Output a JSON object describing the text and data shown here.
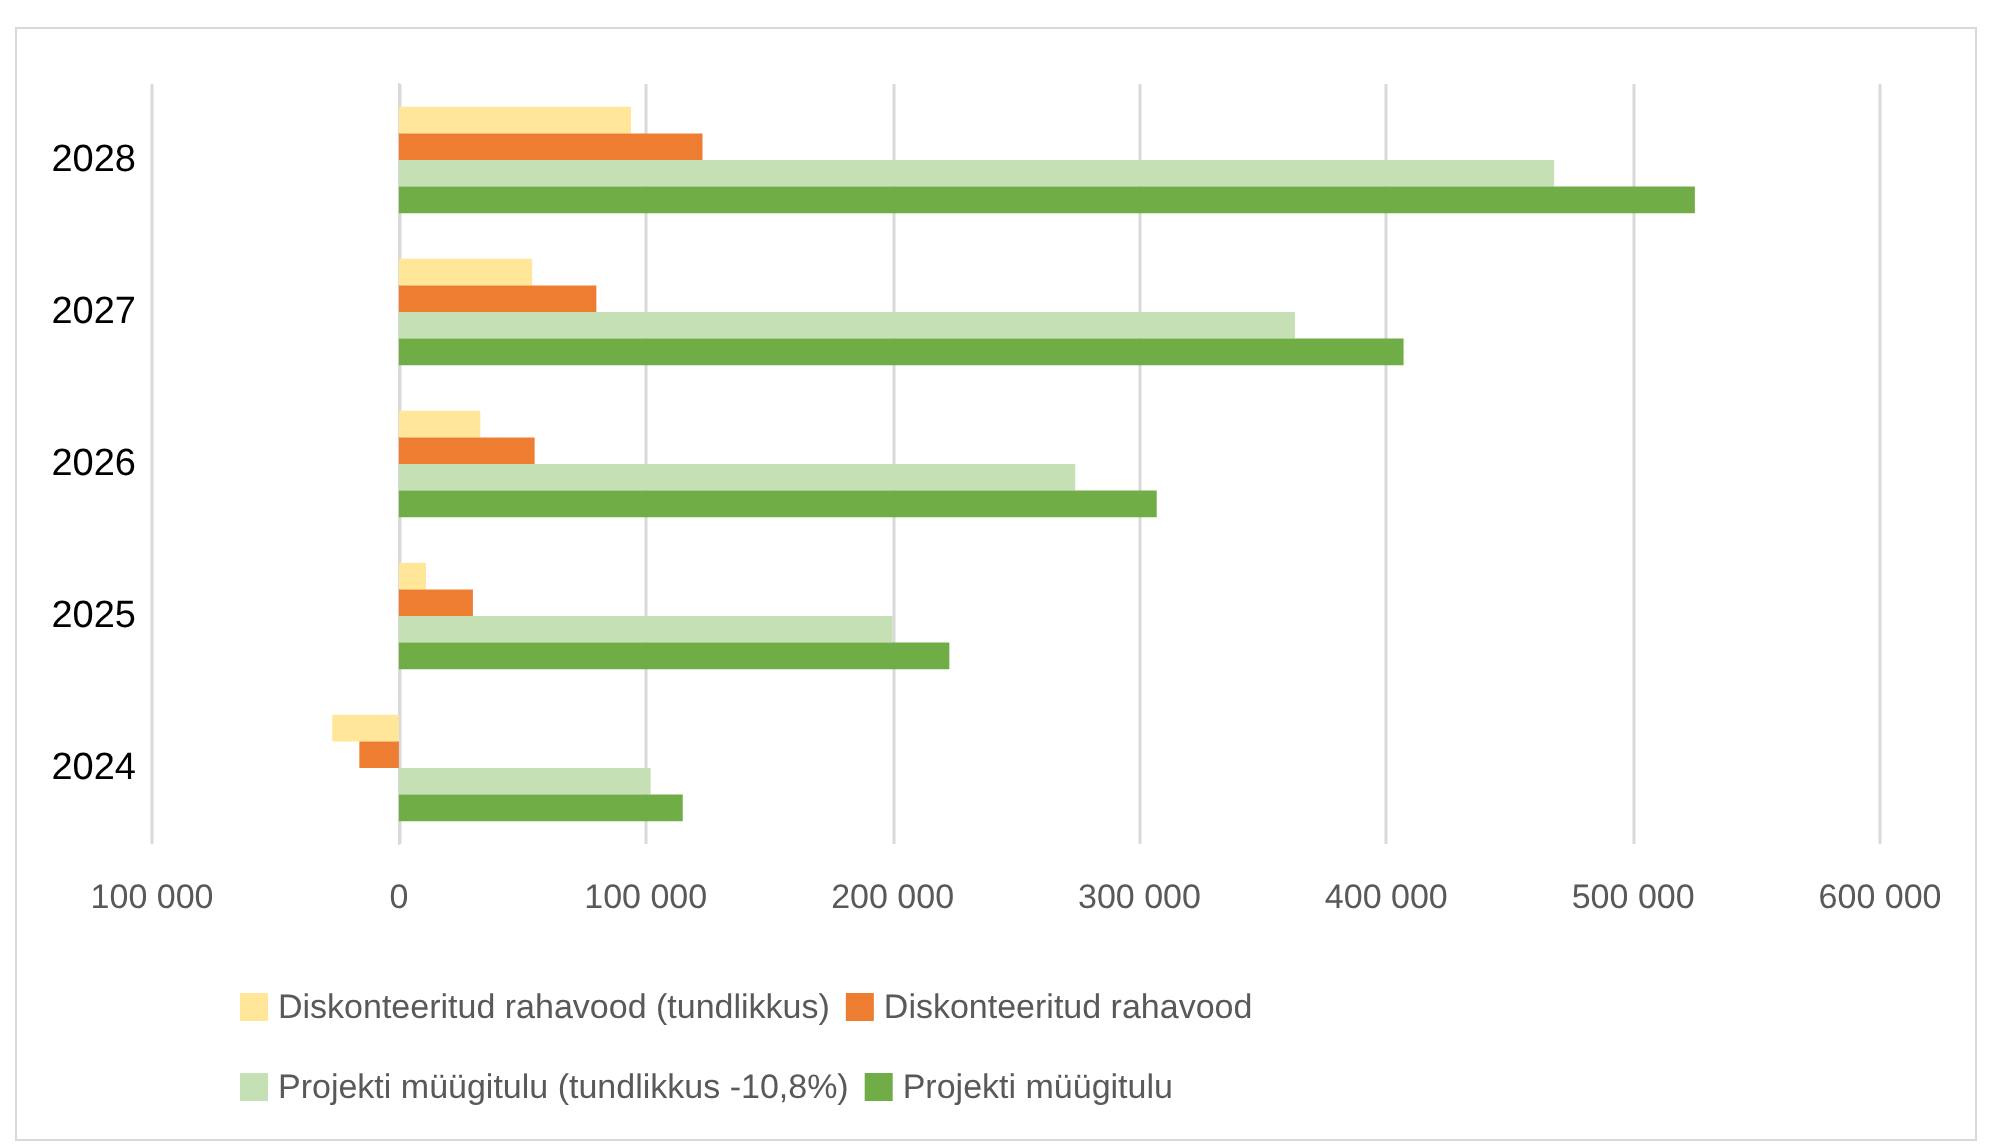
{
  "chart_data": {
    "type": "bar",
    "orientation": "horizontal",
    "categories": [
      "2028",
      "2027",
      "2026",
      "2025",
      "2024"
    ],
    "series": [
      {
        "name": "Diskonteeritud rahavood (tundlikkus)",
        "color": "#ffe699",
        "values": [
          94000,
          54000,
          33000,
          11000,
          -27000
        ]
      },
      {
        "name": "Diskonteeritud rahavood",
        "color": "#ed7d31",
        "values": [
          123000,
          80000,
          55000,
          30000,
          -16000
        ]
      },
      {
        "name": "Projekti müügitulu (tundlikkus -10,8%)",
        "color": "#c5e0b4",
        "values": [
          468000,
          363000,
          274000,
          200000,
          102000
        ]
      },
      {
        "name": "Projekti müügitulu",
        "color": "#70ad47",
        "values": [
          525000,
          407000,
          307000,
          223000,
          115000
        ]
      }
    ],
    "xlim": [
      -100000,
      600000
    ],
    "xticks": [
      {
        "value": -100000,
        "label": "100 000"
      },
      {
        "value": 0,
        "label": "0"
      },
      {
        "value": 100000,
        "label": "100 000"
      },
      {
        "value": 200000,
        "label": "200 000"
      },
      {
        "value": 300000,
        "label": "300 000"
      },
      {
        "value": 400000,
        "label": "400 000"
      },
      {
        "value": 500000,
        "label": "500 000"
      },
      {
        "value": 600000,
        "label": "600 000"
      }
    ],
    "grid": "x",
    "legend": "bottom"
  }
}
